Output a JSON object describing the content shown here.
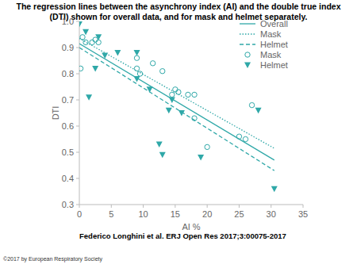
{
  "chart_data": {
    "type": "scatter",
    "title": "The regression lines between the asynchrony index (AI) and the double true index (DTI) shown for overall data, and for mask and helmet separately.",
    "source": "Federico Longhini et al. ERJ Open Res 2017;3:00075-2017",
    "copyright": "©2017 by European Respiratory Society",
    "x_label": "AI %",
    "y_label": "DTI",
    "xlim": [
      0,
      35
    ],
    "xticks": [
      0,
      5,
      10,
      15,
      20,
      25,
      30,
      35
    ],
    "ylim": [
      0.3,
      1.0
    ],
    "yticks": [
      0.3,
      0.4,
      0.5,
      0.6,
      0.7,
      0.8,
      0.9,
      {
        "value": 1,
        "label": "1.0"
      }
    ],
    "grid": false,
    "legend": "upper right",
    "series": [
      {
        "name": "Overall",
        "type": "line",
        "line_style": "solid",
        "color": "#2fa8a8",
        "x": [
          0,
          30.5
        ],
        "values": [
          0.915,
          0.47
        ]
      },
      {
        "name": "Mask",
        "type": "line",
        "line_style": "dotted",
        "color": "#2fa8a8",
        "x": [
          0,
          30.5
        ],
        "values": [
          0.935,
          0.515
        ]
      },
      {
        "name": "Helmet",
        "type": "line",
        "line_style": "dashed",
        "color": "#2fa8a8",
        "x": [
          0,
          30.5
        ],
        "values": [
          0.9,
          0.43
        ]
      },
      {
        "name": "Mask",
        "type": "scatter",
        "marker": "circle",
        "color": "#2fa8a8",
        "x": [
          0.2,
          0.5,
          1,
          2,
          2.5,
          3,
          9,
          9.5,
          9,
          11.5,
          13,
          14.5,
          15,
          15.5,
          17,
          18,
          18,
          20,
          25,
          26,
          27
        ],
        "values": [
          0.82,
          0.94,
          0.92,
          0.92,
          0.93,
          0.92,
          0.82,
          0.8,
          0.86,
          0.84,
          0.81,
          0.72,
          0.74,
          0.73,
          0.72,
          0.72,
          0.63,
          0.52,
          0.56,
          0.55,
          0.68
        ]
      },
      {
        "name": "Helmet",
        "type": "scatter",
        "marker": "triangle",
        "color": "#2fa8a8",
        "x": [
          0,
          1,
          1.5,
          2.5,
          3,
          4,
          6,
          9,
          9,
          11,
          12.5,
          13,
          14,
          14.5,
          16,
          19,
          28,
          30.5
        ],
        "values": [
          0.99,
          0.96,
          0.71,
          0.82,
          0.94,
          0.87,
          0.88,
          0.88,
          0.78,
          0.74,
          0.53,
          0.49,
          0.66,
          0.7,
          0.65,
          0.48,
          0.66,
          0.36
        ]
      }
    ]
  }
}
